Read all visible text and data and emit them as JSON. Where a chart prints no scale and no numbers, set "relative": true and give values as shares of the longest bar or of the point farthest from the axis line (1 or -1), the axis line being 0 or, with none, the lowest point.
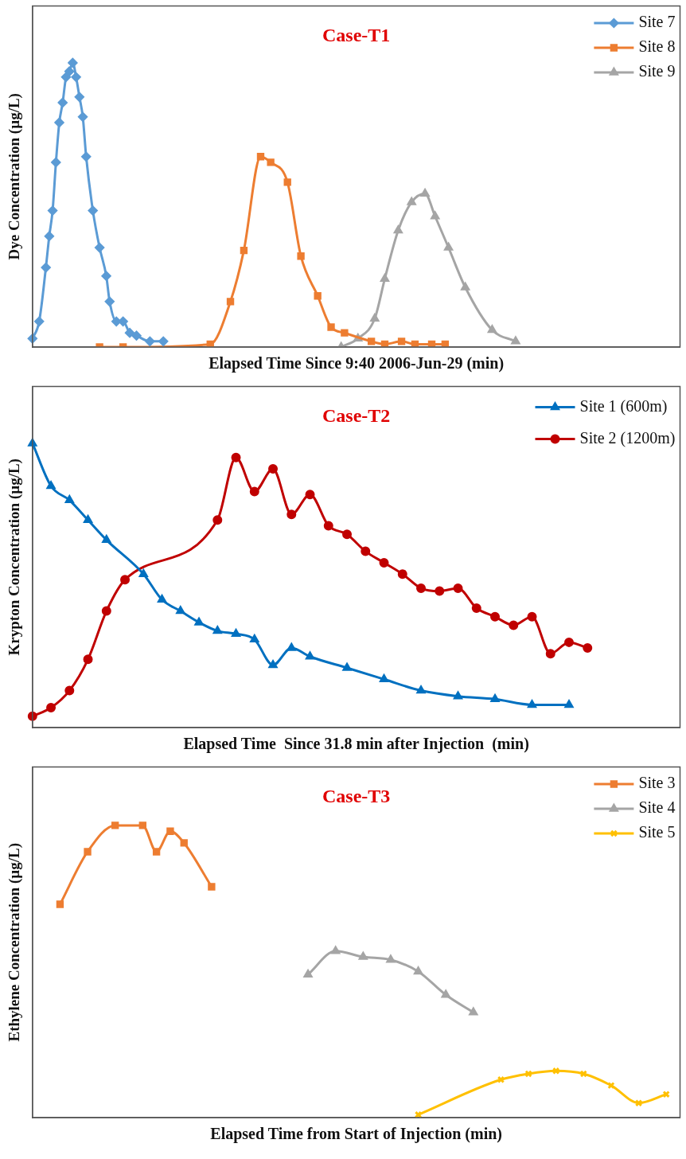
{
  "chart_data": [
    {
      "type": "line",
      "title": "Case-T1",
      "xlabel": "Elapsed Time Since 9:40 2006-Jun-29 (min)",
      "ylabel": "Dye Concentration (µg/L)",
      "relative": true,
      "legend": "top right",
      "tick_labels": false,
      "categories": [
        null,
        null,
        null,
        null,
        null,
        null,
        null,
        null,
        null,
        null,
        null,
        null,
        null,
        null,
        null,
        null,
        null,
        null,
        null,
        null,
        null,
        null,
        null,
        null,
        null,
        null,
        null,
        null,
        null,
        null,
        null,
        null,
        null,
        null,
        null,
        null,
        null,
        null,
        null,
        null,
        null,
        null,
        null,
        null,
        null,
        null,
        null,
        null,
        null,
        null,
        null,
        null,
        null,
        null,
        null,
        null,
        null,
        null,
        null,
        null,
        null,
        null,
        null,
        null,
        null,
        null,
        null,
        null,
        null,
        null,
        null,
        null,
        null,
        null,
        null,
        null,
        null,
        null,
        null,
        null,
        null,
        null,
        null,
        null,
        null,
        null,
        null,
        null,
        null,
        null,
        null,
        null,
        null,
        null,
        null,
        null,
        null,
        null,
        null,
        null,
        null,
        null,
        null,
        null,
        null,
        null,
        null,
        null,
        null,
        null,
        null,
        null,
        null,
        null,
        null,
        null,
        null,
        null,
        null,
        null,
        null,
        null,
        null,
        null,
        null,
        null,
        null,
        null,
        null,
        null,
        null,
        null,
        null,
        null,
        null,
        null,
        null,
        null,
        null,
        null,
        null,
        null,
        null,
        null,
        null,
        null,
        null,
        null,
        null,
        null,
        null,
        null,
        null,
        null,
        null,
        null,
        null,
        null,
        null,
        null,
        null,
        null,
        null,
        null,
        null,
        null,
        null,
        null,
        null,
        null,
        null,
        null,
        null,
        null,
        null,
        null,
        null,
        null,
        null,
        null,
        null,
        null,
        null,
        null,
        null,
        null,
        null,
        null,
        null,
        null,
        null,
        null,
        null,
        null
      ],
      "series": [
        {
          "name": "Site 7",
          "color": "#5b9bd5",
          "marker": "diamond",
          "values": [
            0.03,
            null,
            0.09,
            null,
            0.28,
            0.39,
            0.48,
            0.65,
            0.79,
            0.86,
            0.95,
            0.97,
            1,
            0.95,
            0.88,
            0.81,
            0.67,
            null,
            0.48,
            null,
            0.35,
            null,
            0.25,
            0.16,
            null,
            0.09,
            null,
            0.09,
            null,
            0.05,
            null,
            0.04,
            null,
            null,
            null,
            0.02,
            null,
            null,
            null,
            0.02,
            null,
            null,
            null,
            null,
            null,
            null,
            null,
            null,
            null,
            null,
            null,
            null,
            null,
            null,
            null,
            null,
            null,
            null,
            null,
            null,
            null,
            null,
            null,
            null,
            null,
            null,
            null,
            null,
            null,
            null,
            null,
            null,
            null,
            null,
            null,
            null,
            null,
            null,
            null,
            null,
            null,
            null,
            null,
            null,
            null,
            null,
            null,
            null,
            null,
            null,
            null,
            null,
            null,
            null,
            null,
            null,
            null,
            null,
            null,
            null,
            null,
            null,
            null,
            null,
            null,
            null,
            null,
            null,
            null,
            null,
            null,
            null,
            null,
            null,
            null,
            null,
            null,
            null,
            null,
            null,
            null,
            null,
            null,
            null,
            null,
            null,
            null,
            null,
            null,
            null,
            null,
            null,
            null,
            null,
            null,
            null,
            null,
            null,
            null,
            null,
            null,
            null,
            null,
            null,
            null,
            null,
            null,
            null,
            null,
            null,
            null,
            null,
            null,
            null,
            null,
            null,
            null,
            null,
            null,
            null,
            null,
            null,
            null,
            null,
            null,
            null,
            null,
            null,
            null,
            null,
            null,
            null,
            null,
            null,
            null,
            null,
            null,
            null,
            null,
            null,
            null,
            null,
            null,
            null,
            null,
            null,
            null,
            null,
            null,
            null,
            null,
            null,
            null,
            null
          ]
        },
        {
          "name": "Site 8",
          "color": "#ed7d31",
          "marker": "square",
          "values": [
            null,
            null,
            null,
            null,
            null,
            null,
            null,
            null,
            null,
            null,
            null,
            null,
            null,
            null,
            null,
            null,
            null,
            null,
            null,
            null,
            0,
            null,
            null,
            null,
            null,
            null,
            null,
            0,
            null,
            null,
            null,
            null,
            null,
            null,
            null,
            null,
            null,
            null,
            null,
            null,
            null,
            null,
            null,
            null,
            null,
            null,
            null,
            null,
            null,
            null,
            null,
            null,
            null,
            0.01,
            null,
            null,
            null,
            null,
            null,
            0.16,
            null,
            null,
            null,
            0.34,
            null,
            null,
            null,
            null,
            0.67,
            null,
            null,
            0.65,
            null,
            null,
            null,
            null,
            0.58,
            null,
            null,
            null,
            0.32,
            null,
            null,
            null,
            null,
            0.18,
            null,
            null,
            null,
            0.07,
            null,
            null,
            null,
            0.05,
            null,
            null,
            null,
            null,
            null,
            null,
            null,
            0.02,
            null,
            null,
            null,
            0.01,
            null,
            null,
            null,
            null,
            0.02,
            null,
            null,
            null,
            0.01,
            null,
            null,
            null,
            null,
            0.01,
            null,
            null,
            null,
            0.01,
            null,
            null,
            null,
            null,
            null,
            null,
            null,
            null,
            null,
            null,
            null,
            null,
            null,
            null,
            null,
            null,
            null,
            null,
            null,
            null,
            null,
            null,
            null,
            null,
            null,
            null,
            null,
            null,
            null,
            null,
            null,
            null,
            null,
            null,
            null,
            null,
            null,
            null,
            null,
            null,
            null,
            null,
            null,
            null,
            null,
            null,
            null,
            null,
            null,
            null,
            null,
            null,
            null,
            null,
            null,
            null,
            null,
            null,
            null,
            null,
            null,
            null,
            null,
            null,
            null,
            null,
            null,
            null,
            null,
            null
          ]
        },
        {
          "name": "Site 9",
          "color": "#a5a5a5",
          "marker": "triangle",
          "values": [
            null,
            null,
            null,
            null,
            null,
            null,
            null,
            null,
            null,
            null,
            null,
            null,
            null,
            null,
            null,
            null,
            null,
            null,
            null,
            null,
            null,
            null,
            null,
            null,
            null,
            null,
            null,
            null,
            null,
            null,
            null,
            null,
            null,
            null,
            null,
            null,
            null,
            null,
            null,
            null,
            null,
            null,
            null,
            null,
            null,
            null,
            null,
            null,
            null,
            null,
            null,
            null,
            null,
            null,
            null,
            null,
            null,
            null,
            null,
            null,
            null,
            null,
            null,
            null,
            null,
            null,
            null,
            null,
            null,
            null,
            null,
            null,
            null,
            null,
            null,
            null,
            null,
            null,
            null,
            null,
            null,
            null,
            null,
            null,
            null,
            null,
            null,
            null,
            null,
            null,
            null,
            null,
            0,
            null,
            null,
            null,
            null,
            0.03,
            null,
            null,
            null,
            null,
            0.1,
            null,
            null,
            0.24,
            null,
            null,
            null,
            0.41,
            null,
            null,
            null,
            0.51,
            null,
            null,
            null,
            0.54,
            null,
            null,
            0.46,
            null,
            null,
            null,
            0.35,
            null,
            null,
            null,
            null,
            0.21,
            null,
            null,
            null,
            null,
            null,
            null,
            null,
            0.06,
            null,
            null,
            null,
            null,
            null,
            null,
            0.02,
            null,
            null,
            null,
            null,
            null,
            null,
            null,
            null,
            null,
            null,
            null,
            null,
            null,
            null,
            null,
            null,
            null,
            null,
            null,
            null,
            null,
            null,
            null,
            null,
            null,
            null,
            null,
            null,
            null,
            null,
            null,
            null,
            null,
            null,
            null,
            null,
            null,
            null,
            null,
            null,
            null,
            null,
            null,
            null,
            null,
            null,
            null,
            null,
            null
          ]
        }
      ]
    },
    {
      "type": "line",
      "title": "Case-T2",
      "xlabel": "Elapsed Time  Since 31.8 min after Injection  (min)",
      "ylabel": "Krypton Concentration (µg/L)",
      "relative": true,
      "legend": "top right",
      "tick_labels": false,
      "categories": [
        null,
        null,
        null,
        null,
        null,
        null,
        null,
        null,
        null,
        null,
        null,
        null,
        null,
        null,
        null,
        null,
        null,
        null,
        null,
        null,
        null,
        null,
        null,
        null,
        null,
        null,
        null,
        null,
        null,
        null,
        null,
        null,
        null,
        null,
        null,
        null
      ],
      "series": [
        {
          "name": "Site 1 (600m)",
          "color": "#0070c0",
          "marker": "triangle",
          "values": [
            1,
            0.85,
            0.8,
            0.73,
            0.66,
            null,
            0.54,
            0.45,
            0.41,
            0.37,
            0.34,
            0.33,
            0.31,
            0.22,
            0.28,
            0.25,
            null,
            0.21,
            null,
            0.17,
            null,
            0.13,
            null,
            0.11,
            null,
            0.1,
            null,
            0.08,
            null,
            0.08,
            null,
            null,
            null,
            null,
            null,
            null
          ]
        },
        {
          "name": "Site 2 (1200m)",
          "color": "#c00000",
          "marker": "circle",
          "values": [
            0.04,
            0.07,
            0.13,
            0.24,
            0.41,
            0.52,
            null,
            null,
            null,
            null,
            0.73,
            0.95,
            0.83,
            0.91,
            0.75,
            0.82,
            0.71,
            0.68,
            0.62,
            0.58,
            0.54,
            0.49,
            0.48,
            0.49,
            0.42,
            0.39,
            0.36,
            0.39,
            0.26,
            0.3,
            0.28,
            null,
            null,
            null,
            null,
            null
          ]
        }
      ]
    },
    {
      "type": "line",
      "title": "Case-T3",
      "xlabel": "Elapsed Time from Start of Injection (min)",
      "ylabel": "Ethylene Concentration (µg/L)",
      "relative": true,
      "legend": "top right",
      "tick_labels": false,
      "categories": [
        null,
        null,
        null,
        null,
        null,
        null,
        null,
        null,
        null,
        null,
        null,
        null,
        null,
        null,
        null,
        null,
        null,
        null,
        null,
        null,
        null,
        null,
        null,
        null,
        null,
        null,
        null,
        null,
        null,
        null,
        null,
        null,
        null,
        null,
        null,
        null,
        null,
        null,
        null,
        null,
        null,
        null,
        null,
        null,
        null,
        null,
        null,
        null
      ],
      "series": [
        {
          "name": "Site 3",
          "color": "#ed7d31",
          "marker": "square",
          "values": [
            null,
            null,
            0.73,
            null,
            0.91,
            null,
            1,
            null,
            1,
            0.91,
            0.98,
            0.94,
            null,
            0.79,
            null,
            null,
            null,
            null,
            null,
            null,
            null,
            null,
            null,
            null,
            null,
            null,
            null,
            null,
            null,
            null,
            null,
            null,
            null,
            null,
            null,
            null,
            null,
            null,
            null,
            null,
            null,
            null,
            null,
            null,
            null,
            null,
            null,
            null
          ]
        },
        {
          "name": "Site 4",
          "color": "#a5a5a5",
          "marker": "triangle",
          "values": [
            null,
            null,
            null,
            null,
            null,
            null,
            null,
            null,
            null,
            null,
            null,
            null,
            null,
            null,
            null,
            null,
            null,
            null,
            null,
            null,
            0.49,
            null,
            0.57,
            null,
            0.55,
            null,
            0.54,
            null,
            0.5,
            null,
            0.42,
            null,
            0.36,
            null,
            null,
            null,
            null,
            null,
            null,
            null,
            null,
            null,
            null,
            null,
            null,
            null,
            null,
            null
          ]
        },
        {
          "name": "Site 5",
          "color": "#ffc000",
          "marker": "cross",
          "values": [
            null,
            null,
            null,
            null,
            null,
            null,
            null,
            null,
            null,
            null,
            null,
            null,
            null,
            null,
            null,
            null,
            null,
            null,
            null,
            null,
            null,
            null,
            null,
            null,
            null,
            null,
            null,
            null,
            0.01,
            null,
            null,
            null,
            null,
            null,
            0.13,
            null,
            0.15,
            null,
            0.16,
            null,
            0.15,
            null,
            0.11,
            null,
            0.05,
            null,
            0.08,
            null
          ]
        }
      ]
    }
  ]
}
